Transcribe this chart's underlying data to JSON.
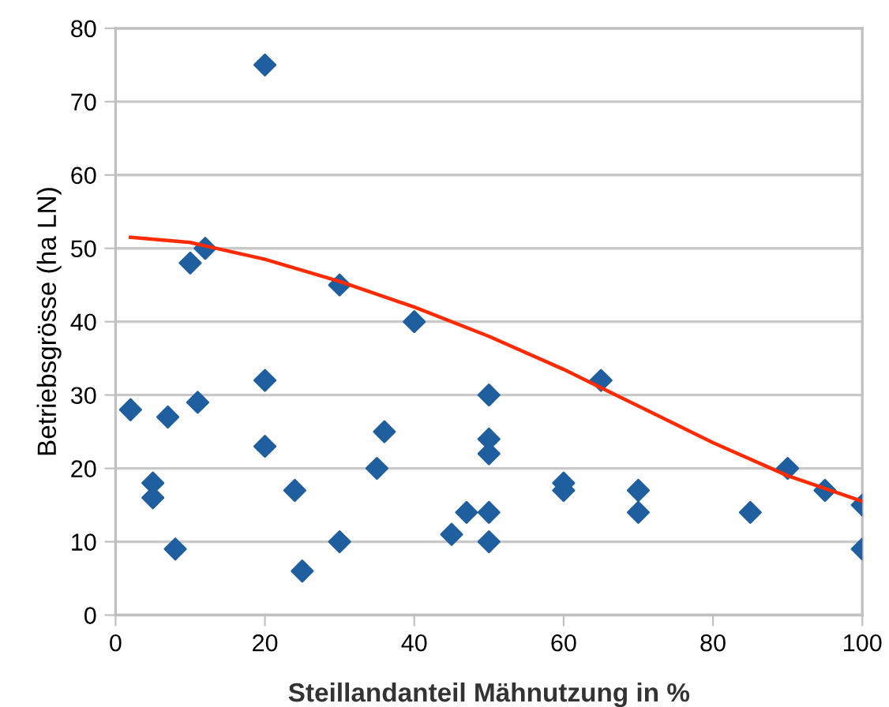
{
  "chart_data": {
    "type": "scatter",
    "xlabel": "Steillandanteil Mähnutzung in %",
    "ylabel": "Betriebsgrösse (ha LN)",
    "xlim": [
      0,
      100
    ],
    "xticks": [
      0,
      20,
      40,
      60,
      80,
      100
    ],
    "ylim": [
      0,
      80
    ],
    "yticks": [
      0,
      10,
      20,
      30,
      40,
      50,
      60,
      70,
      80
    ],
    "grid": "y",
    "series": [
      {
        "marker": "diamond",
        "color": "#1f5f9f",
        "x": [
          2,
          5,
          5,
          7,
          8,
          10,
          11,
          12,
          20,
          20,
          20,
          24,
          25,
          30,
          30,
          35,
          36,
          40,
          45,
          47,
          50,
          50,
          50,
          50,
          50,
          60,
          60,
          65,
          70,
          70,
          85,
          90,
          95,
          100,
          100
        ],
        "values": [
          28,
          18,
          16,
          27,
          9,
          48,
          29,
          50,
          75,
          32,
          23,
          17,
          6,
          45,
          10,
          20,
          25,
          40,
          11,
          14,
          30,
          24,
          22,
          14,
          10,
          18,
          17,
          32,
          17,
          14,
          14,
          20,
          17,
          15,
          9
        ]
      },
      {
        "type": "line",
        "marker": "none",
        "color": "#ff2a00",
        "x": [
          2,
          10,
          20,
          30,
          40,
          50,
          60,
          70,
          80,
          90,
          100
        ],
        "values": [
          51.5,
          50.8,
          48.5,
          45.5,
          42,
          38,
          33.5,
          28.5,
          23.5,
          19,
          15.5
        ]
      }
    ]
  }
}
